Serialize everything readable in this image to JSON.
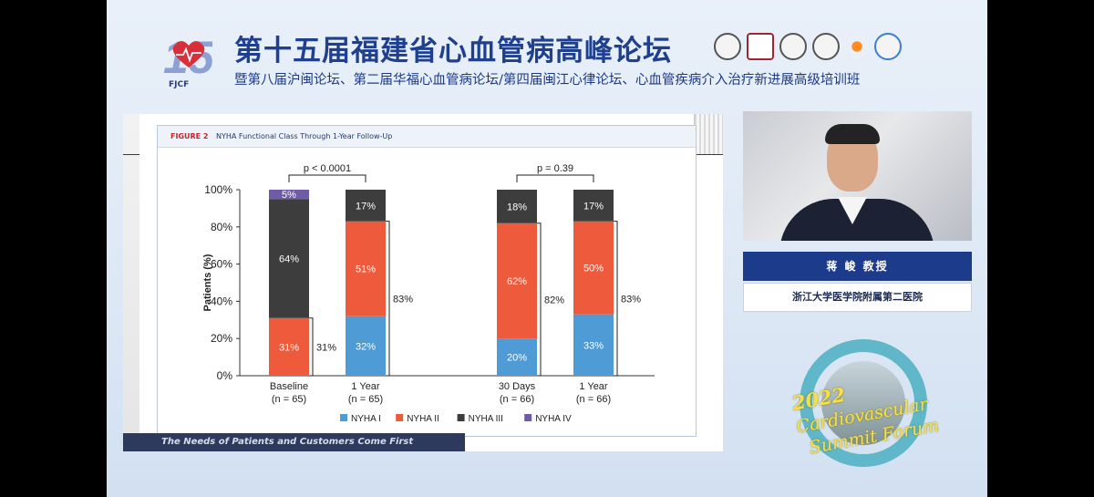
{
  "header": {
    "logo_text": "FJCF",
    "title": "第十五届福建省心血管病高峰论坛",
    "subtitle": "暨第八届沪闽论坛、第二届华福心血管病论坛/第四届闽江心律论坛、心血管疾病介入治疗新进展高级培训班"
  },
  "slide": {
    "figure_tag": "FIGURE 2",
    "figure_title": "NYHA Functional Class Through 1-Year Follow-Up",
    "footer_text": "The Needs of Patients and Customers Come First"
  },
  "speaker": {
    "name": "蒋 峻 教授",
    "institution": "浙江大学医学院附属第二医院"
  },
  "forum": {
    "year": "2022",
    "line1": "Cardiovascular",
    "line2": "Summit Forum"
  },
  "colors": {
    "nyha1": "#4e9bd6",
    "nyha2": "#ee5a3c",
    "nyha3": "#3d3d3d",
    "nyha4": "#6f5ba7",
    "title_blue": "#1f3f8f"
  },
  "chart_data": {
    "type": "bar",
    "stacked": true,
    "categories": [
      "Baseline",
      "1 Year",
      "30 Days",
      "1 Year"
    ],
    "category_sublabels": [
      "(n = 65)",
      "(n = 65)",
      "(n = 66)",
      "(n = 66)"
    ],
    "series": [
      {
        "name": "NYHA I",
        "values": [
          0,
          32,
          20,
          33
        ]
      },
      {
        "name": "NYHA II",
        "values": [
          31,
          51,
          62,
          50
        ]
      },
      {
        "name": "NYHA III",
        "values": [
          64,
          17,
          18,
          17
        ]
      },
      {
        "name": "NYHA IV",
        "values": [
          5,
          0,
          0,
          0
        ]
      }
    ],
    "segment_labels": [
      [
        "",
        "31%",
        "64%",
        "5%"
      ],
      [
        "32%",
        "51%",
        "17%",
        ""
      ],
      [
        "20%",
        "62%",
        "18%",
        ""
      ],
      [
        "33%",
        "50%",
        "17%",
        ""
      ]
    ],
    "bracket_labels": [
      "31%",
      "83%",
      "82%",
      "83%"
    ],
    "bracket_values": [
      31,
      83,
      82,
      83
    ],
    "comparisons": [
      {
        "label": "p < 0.0001",
        "bars": [
          0,
          1
        ]
      },
      {
        "label": "p = 0.39",
        "bars": [
          2,
          3
        ]
      }
    ],
    "ylabel": "Patients (%)",
    "ylim": [
      0,
      100
    ],
    "yticks": [
      0,
      20,
      40,
      60,
      80,
      100
    ],
    "ytick_labels": [
      "0%",
      "20%",
      "40%",
      "60%",
      "80%",
      "100%"
    ],
    "grid": false,
    "legend_position": "bottom"
  }
}
